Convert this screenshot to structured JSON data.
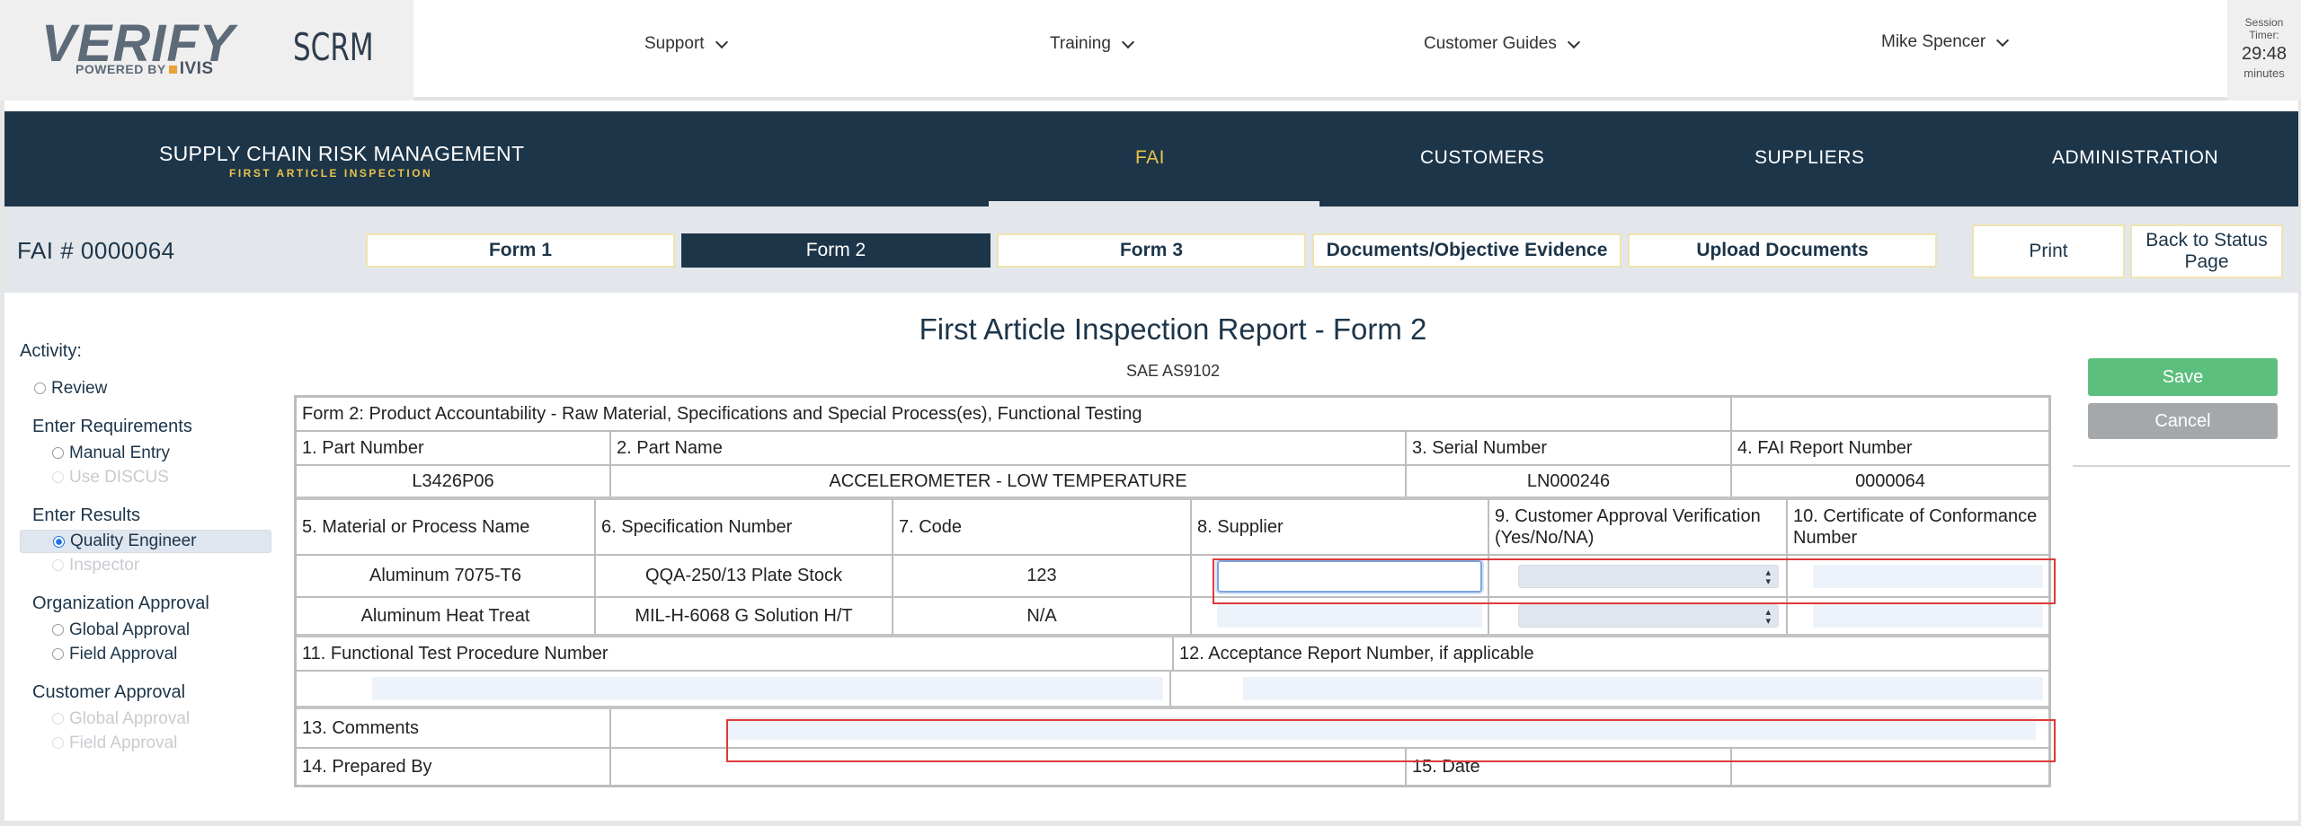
{
  "brand": {
    "logo_text": "VERIFY",
    "powered_by": "POWERED BY",
    "powered_brand": "IVIS",
    "app_name": "SCRM"
  },
  "topnav": {
    "support": "Support",
    "training": "Training",
    "customer_guides": "Customer Guides",
    "user": "Mike Spencer"
  },
  "session": {
    "label_line1": "Session",
    "label_line2": "Timer:",
    "value": "29:48",
    "unit": "minutes"
  },
  "header": {
    "title": "SUPPLY CHAIN RISK MANAGEMENT",
    "subtitle": "FIRST ARTICLE INSPECTION",
    "nav": {
      "fai": "FAI",
      "customers": "CUSTOMERS",
      "suppliers": "SUPPLIERS",
      "administration": "ADMINISTRATION"
    }
  },
  "formbar": {
    "fai_number": "FAI # 0000064",
    "tabs": {
      "form1": "Form 1",
      "form2": "Form 2",
      "form3": "Form 3",
      "docs": "Documents/Objective Evidence",
      "upload": "Upload Documents"
    },
    "print": "Print",
    "back_line1": "Back to Status",
    "back_line2": "Page"
  },
  "sidebar": {
    "activity": "Activity:",
    "review": "Review",
    "enter_requirements": "Enter Requirements",
    "manual_entry": "Manual Entry",
    "use_discus": "Use DISCUS",
    "enter_results": "Enter Results",
    "quality_engineer": "Quality Engineer",
    "inspector": "Inspector",
    "org_approval": "Organization Approval",
    "global_approval": "Global Approval",
    "field_approval": "Field Approval",
    "customer_approval": "Customer Approval",
    "cust_global_approval": "Global Approval",
    "cust_field_approval": "Field Approval"
  },
  "report": {
    "title": "First Article Inspection Report - Form 2",
    "subtitle": "SAE AS9102",
    "form_heading": "Form 2: Product Accountability - Raw Material, Specifications and Special Process(es), Functional Testing",
    "labels": {
      "part_number": "1. Part Number",
      "part_name": "2. Part Name",
      "serial_number": "3. Serial Number",
      "fai_report_number": "4. FAI Report Number",
      "material": "5. Material or Process Name",
      "spec_number": "6. Specification Number",
      "code": "7. Code",
      "supplier": "8. Supplier",
      "cust_approval": "9. Customer Approval Verification (Yes/No/NA)",
      "coc_number": "10. Certificate of Conformance Number",
      "func_test": "11. Functional Test Procedure Number",
      "acceptance": "12. Acceptance Report Number, if applicable",
      "comments": "13. Comments",
      "prepared_by": "14. Prepared By",
      "date": "15. Date"
    },
    "values": {
      "part_number": "L3426P06",
      "part_name": "ACCELEROMETER - LOW TEMPERATURE",
      "serial_number": "LN000246",
      "fai_report_number": "0000064"
    },
    "materials": [
      {
        "name": "Aluminum 7075-T6",
        "spec": "QQA-250/13 Plate Stock",
        "code": "123"
      },
      {
        "name": "Aluminum Heat Treat",
        "spec": "MIL-H-6068 G Solution H/T",
        "code": "N/A"
      }
    ]
  },
  "actions": {
    "save": "Save",
    "cancel": "Cancel"
  },
  "colors": {
    "navy": "#1d3549",
    "gold": "#e8c34a",
    "save_green": "#5cbf7e",
    "cancel_gray": "#a5a8ab",
    "highlight_red": "#e03a3a"
  }
}
